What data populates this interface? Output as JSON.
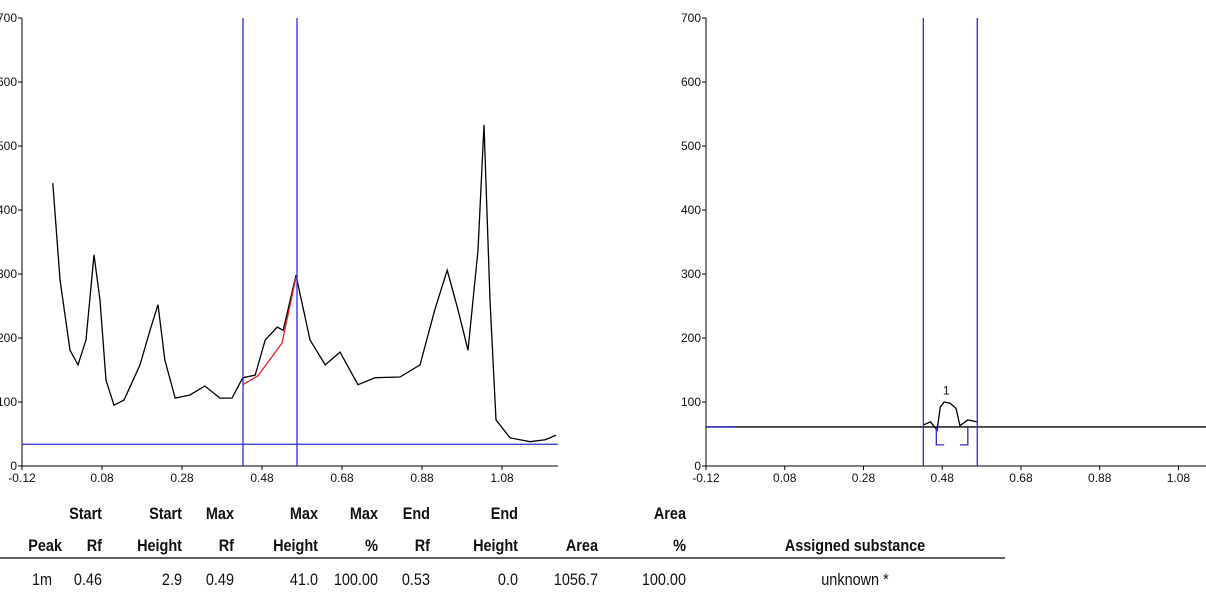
{
  "chart_data": [
    {
      "type": "line",
      "xlim": [
        -0.12,
        1.22
      ],
      "ylim": [
        0,
        700
      ],
      "xticks": [
        -0.12,
        0.08,
        0.28,
        0.48,
        0.68,
        0.88,
        1.08
      ],
      "yticks": [
        0,
        100,
        200,
        300,
        400,
        500,
        600,
        700
      ],
      "vlines": [
        0.4325,
        0.5675
      ],
      "hline": 34,
      "cursor_color": "#2b2bd9",
      "series": [
        {
          "color": "#000000",
          "x": [
            -0.043,
            -0.025,
            0.0,
            0.02,
            0.04,
            0.06,
            0.075,
            0.09,
            0.11,
            0.135,
            0.175,
            0.2,
            0.22,
            0.237,
            0.263,
            0.3,
            0.337,
            0.375,
            0.405,
            0.432,
            0.463,
            0.488,
            0.518,
            0.533,
            0.565,
            0.6,
            0.638,
            0.675,
            0.72,
            0.763,
            0.825,
            0.875,
            0.912,
            0.943,
            0.97,
            0.995,
            1.02,
            1.035,
            1.05,
            1.065,
            1.1,
            1.15,
            1.188,
            1.215
          ],
          "values": [
            442,
            291,
            181,
            158,
            197,
            330,
            259,
            134,
            95,
            103,
            158,
            212,
            252,
            166,
            106,
            111,
            125,
            106,
            106,
            138,
            142,
            197,
            217,
            212,
            298,
            197,
            158,
            178,
            127,
            138,
            139,
            158,
            244,
            306,
            244,
            181,
            337,
            533,
            259,
            72,
            44,
            38,
            41,
            48
          ]
        },
        {
          "color": "#e8231f",
          "x": [
            0.432,
            0.47,
            0.53,
            0.565
          ],
          "values": [
            127,
            141,
            192,
            295
          ]
        }
      ]
    },
    {
      "type": "line",
      "xlim": [
        -0.12,
        1.15
      ],
      "ylim": [
        0,
        700
      ],
      "xticks": [
        -0.12,
        0.08,
        0.28,
        0.48,
        0.68,
        0.88,
        1.08
      ],
      "yticks": [
        0,
        100,
        200,
        300,
        400,
        500,
        600,
        700
      ],
      "vlines": [
        0.432,
        0.569
      ],
      "cursor_color": "#2b2bd9",
      "annotations": [
        {
          "text": "1",
          "x": 0.49,
          "y": 112
        }
      ],
      "series": [
        {
          "color": "#000000",
          "x": [
            -0.12,
            1.15
          ],
          "values": [
            61,
            61
          ]
        },
        {
          "color": "#2b2bd9",
          "x": [
            -0.12,
            -0.046
          ],
          "values": [
            61,
            61
          ]
        },
        {
          "color": "#000000",
          "x": [
            0.432,
            0.45,
            0.467,
            0.475,
            0.485,
            0.5,
            0.515,
            0.525,
            0.545,
            0.569
          ],
          "values": [
            64,
            69,
            56,
            92,
            100,
            98,
            90,
            63,
            72,
            69
          ]
        },
        {
          "color": "#2b2bd9",
          "x": [
            0.465,
            0.465,
            0.485
          ],
          "values": [
            61,
            33,
            33
          ]
        },
        {
          "color": "#2b2bd9",
          "x": [
            0.525,
            0.545,
            0.545
          ],
          "values": [
            33,
            33,
            61
          ]
        }
      ]
    }
  ],
  "table": {
    "headers": [
      [
        "Peak"
      ],
      [
        "Start",
        "Rf"
      ],
      [
        "Start",
        "Height"
      ],
      [
        "Max",
        "Rf"
      ],
      [
        "Max",
        "Height"
      ],
      [
        "Max",
        "%"
      ],
      [
        "End",
        "Rf"
      ],
      [
        "End",
        "Height"
      ],
      [
        "Area"
      ],
      [
        "Area",
        "%"
      ],
      [
        "Assigned substance"
      ]
    ],
    "rows": [
      [
        "1m",
        "0.46",
        "2.9",
        "0.49",
        "41.0",
        "100.00",
        "0.53",
        "0.0",
        "1056.7",
        "100.00",
        "unknown *"
      ]
    ]
  }
}
